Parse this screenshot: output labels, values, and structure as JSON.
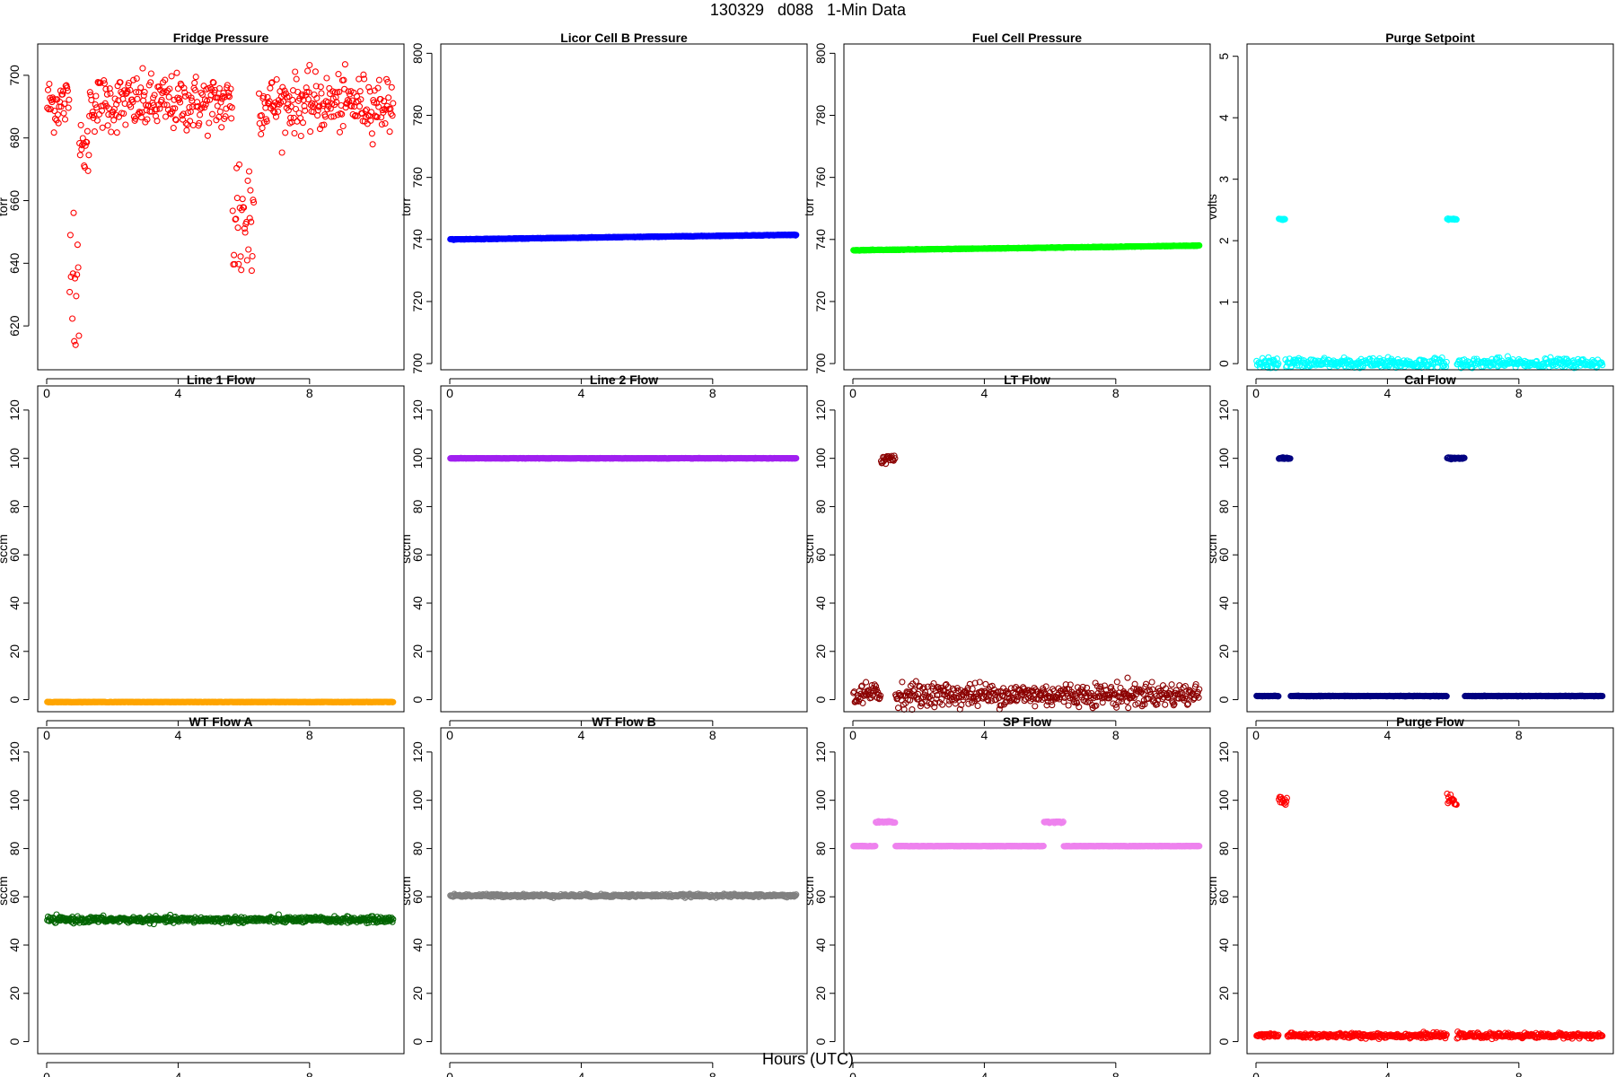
{
  "title": "130329   d088   1-Min Data",
  "xlabel": "Hours (UTC)",
  "chart_data": [
    {
      "type": "scatter",
      "title": "Fridge Pressure",
      "ylabel": "torr",
      "color": "#ff0000",
      "xlim": [
        0,
        10.6
      ],
      "ylim": [
        606,
        710
      ],
      "xticks": [
        0,
        4,
        8
      ],
      "yticks": [
        620,
        640,
        660,
        680,
        700
      ],
      "pattern": "fridge"
    },
    {
      "type": "scatter",
      "title": "Licor Cell B Pressure",
      "ylabel": "torr",
      "color": "#0000ff",
      "xlim": [
        0,
        10.6
      ],
      "ylim": [
        698,
        803
      ],
      "xticks": [
        0,
        4,
        8
      ],
      "yticks": [
        700,
        720,
        740,
        760,
        780,
        800
      ],
      "baseline": [
        740.0,
        741.5
      ],
      "pattern": "flat"
    },
    {
      "type": "scatter",
      "title": "Fuel Cell Pressure",
      "ylabel": "torr",
      "color": "#00ff00",
      "xlim": [
        0,
        10.6
      ],
      "ylim": [
        698,
        803
      ],
      "xticks": [
        0,
        4,
        8
      ],
      "yticks": [
        700,
        720,
        740,
        760,
        780,
        800
      ],
      "baseline": [
        736.5,
        738.0
      ],
      "pattern": "flat"
    },
    {
      "type": "scatter",
      "title": "Purge Setpoint",
      "ylabel": "volts",
      "color": "#00ffff",
      "xlim": [
        0,
        10.6
      ],
      "ylim": [
        -0.1,
        5.2
      ],
      "xticks": [
        0,
        4,
        8
      ],
      "yticks": [
        0,
        1,
        2,
        3,
        4,
        5
      ],
      "baseline": [
        0,
        0
      ],
      "spikes": [
        {
          "x": [
            0.7,
            0.9
          ],
          "y": 2.35
        },
        {
          "x": [
            5.8,
            6.1
          ],
          "y": 2.35
        }
      ],
      "pattern": "flat_spikes"
    },
    {
      "type": "scatter",
      "title": "Line 1 Flow",
      "ylabel": "sccm",
      "color": "#ffa500",
      "xlim": [
        0,
        10.6
      ],
      "ylim": [
        -5,
        130
      ],
      "xticks": [
        0,
        4,
        8
      ],
      "yticks": [
        0,
        20,
        40,
        60,
        80,
        100,
        120
      ],
      "baseline": [
        -1,
        -1
      ],
      "pattern": "flat"
    },
    {
      "type": "scatter",
      "title": "Line 2 Flow",
      "ylabel": "sccm",
      "color": "#a020f0",
      "xlim": [
        0,
        10.6
      ],
      "ylim": [
        -5,
        130
      ],
      "xticks": [
        0,
        4,
        8
      ],
      "yticks": [
        0,
        20,
        40,
        60,
        80,
        100,
        120
      ],
      "baseline": [
        100,
        100
      ],
      "pattern": "flat"
    },
    {
      "type": "scatter",
      "title": "LT Flow",
      "ylabel": "sccm",
      "color": "#8b0000",
      "xlim": [
        0,
        10.6
      ],
      "ylim": [
        -5,
        130
      ],
      "xticks": [
        0,
        4,
        8
      ],
      "yticks": [
        0,
        20,
        40,
        60,
        80,
        100,
        120
      ],
      "baseline": [
        2,
        2
      ],
      "noise": 2.5,
      "spikes": [
        {
          "x": [
            0.85,
            1.3
          ],
          "y": 100
        }
      ],
      "pattern": "noisy_spikes"
    },
    {
      "type": "scatter",
      "title": "Cal Flow",
      "ylabel": "sccm",
      "color": "#000080",
      "xlim": [
        0,
        10.6
      ],
      "ylim": [
        -5,
        130
      ],
      "xticks": [
        0,
        4,
        8
      ],
      "yticks": [
        0,
        20,
        40,
        60,
        80,
        100,
        120
      ],
      "baseline": [
        1.5,
        1.5
      ],
      "spikes": [
        {
          "x": [
            0.7,
            1.05
          ],
          "y": 100
        },
        {
          "x": [
            5.8,
            6.35
          ],
          "y": 100
        }
      ],
      "pattern": "flat_spikes"
    },
    {
      "type": "scatter",
      "title": "WT Flow A",
      "ylabel": "sccm",
      "color": "#006400",
      "xlim": [
        0,
        10.6
      ],
      "ylim": [
        -5,
        130
      ],
      "xticks": [
        0,
        4,
        8
      ],
      "yticks": [
        0,
        20,
        40,
        60,
        80,
        100,
        120
      ],
      "baseline": [
        50.5,
        50.5
      ],
      "noise": 0.6,
      "pattern": "noisy"
    },
    {
      "type": "scatter",
      "title": "WT Flow B",
      "ylabel": "sccm",
      "color": "#808080",
      "xlim": [
        0,
        10.6
      ],
      "ylim": [
        -5,
        130
      ],
      "xticks": [
        0,
        4,
        8
      ],
      "yticks": [
        0,
        20,
        40,
        60,
        80,
        100,
        120
      ],
      "baseline": [
        60.5,
        60.5
      ],
      "noise": 0.3,
      "pattern": "noisy"
    },
    {
      "type": "scatter",
      "title": "SP Flow",
      "ylabel": "sccm",
      "color": "#ee82ee",
      "xlim": [
        0,
        10.6
      ],
      "ylim": [
        -5,
        130
      ],
      "xticks": [
        0,
        4,
        8
      ],
      "yticks": [
        0,
        20,
        40,
        60,
        80,
        100,
        120
      ],
      "baseline": [
        81,
        81
      ],
      "spikes": [
        {
          "x": [
            0.7,
            1.3
          ],
          "y": 91
        },
        {
          "x": [
            5.8,
            6.4
          ],
          "y": 91
        }
      ],
      "pattern": "flat_spikes"
    },
    {
      "type": "scatter",
      "title": "Purge Flow",
      "ylabel": "sccm",
      "color": "#ff0000",
      "xlim": [
        0,
        10.6
      ],
      "ylim": [
        -5,
        130
      ],
      "xticks": [
        0,
        4,
        8
      ],
      "yticks": [
        0,
        20,
        40,
        60,
        80,
        100,
        120
      ],
      "baseline": [
        2.5,
        2.5
      ],
      "noise": 0.5,
      "spikes": [
        {
          "x": [
            0.7,
            0.95
          ],
          "y": 100
        },
        {
          "x": [
            5.8,
            6.1
          ],
          "y": 100
        }
      ],
      "pattern": "noisy_spikes"
    }
  ]
}
